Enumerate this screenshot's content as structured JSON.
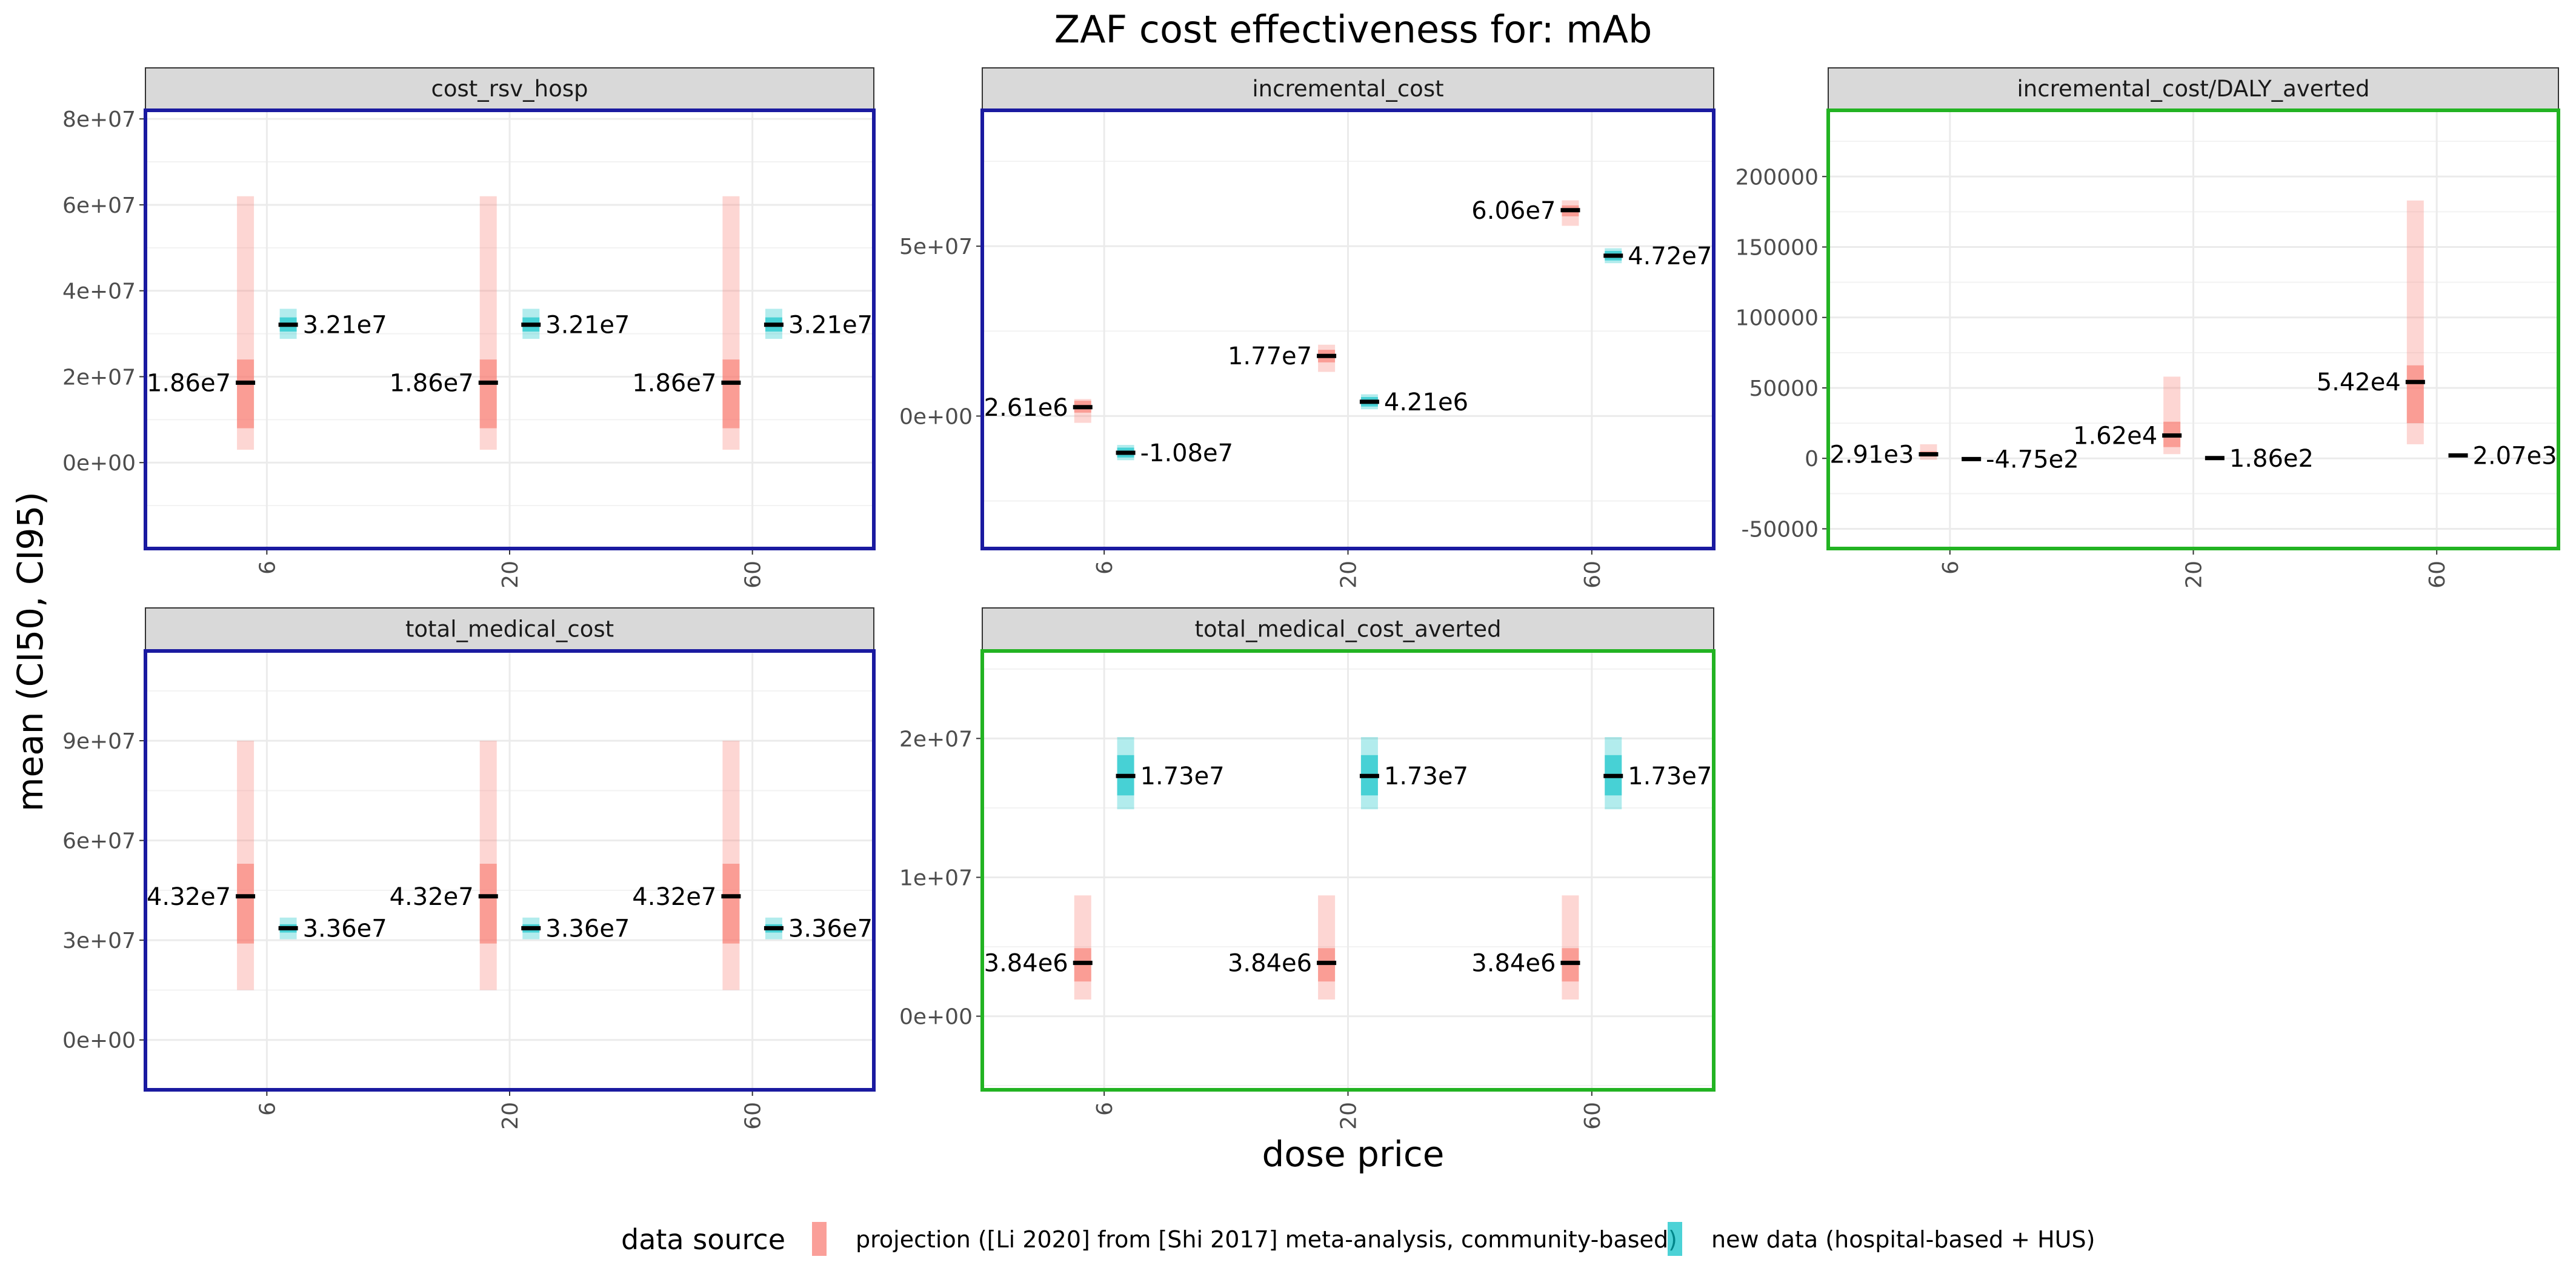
{
  "chart_data": {
    "type": "errorbar-facets",
    "title": "ZAF cost effectiveness for: mAb",
    "xlabel": "dose price",
    "ylabel": "mean (CI50, CI95)",
    "categories": [
      "6",
      "20",
      "60"
    ],
    "legend": {
      "title": "data source",
      "placement": "bottom",
      "entries": [
        {
          "name": "projection ([Li 2020] from [Shi 2017] meta-analysis, community-based)",
          "color": "#F8766D"
        },
        {
          "name": "new data (hospital-based + HUS)",
          "color": "#00BFC4"
        }
      ]
    },
    "facets": [
      {
        "name": "cost_rsv_hosp",
        "border": "#1a1aa0",
        "ylim": [
          -20000000,
          82000000
        ],
        "ticks": [
          0,
          20000000,
          40000000,
          60000000,
          80000000
        ],
        "tick_labels": [
          "0e+00",
          "2e+07",
          "4e+07",
          "6e+07",
          "8e+07"
        ],
        "series": [
          {
            "name": "projection ([Li 2020] from [Shi 2017] meta-analysis, community-based)",
            "points": [
              {
                "x": "6",
                "mean": 18600000,
                "ci50": [
                  8000000,
                  24000000
                ],
                "ci95": [
                  3000000,
                  62000000
                ],
                "label": "1.86e7"
              },
              {
                "x": "20",
                "mean": 18600000,
                "ci50": [
                  8000000,
                  24000000
                ],
                "ci95": [
                  3000000,
                  62000000
                ],
                "label": "1.86e7"
              },
              {
                "x": "60",
                "mean": 18600000,
                "ci50": [
                  8000000,
                  24000000
                ],
                "ci95": [
                  3000000,
                  62000000
                ],
                "label": "1.86e7"
              }
            ]
          },
          {
            "name": "new data (hospital-based + HUS)",
            "points": [
              {
                "x": "6",
                "mean": 32100000,
                "ci50": [
                  30500000,
                  33800000
                ],
                "ci95": [
                  28800000,
                  35800000
                ],
                "label": "3.21e7"
              },
              {
                "x": "20",
                "mean": 32100000,
                "ci50": [
                  30500000,
                  33800000
                ],
                "ci95": [
                  28800000,
                  35800000
                ],
                "label": "3.21e7"
              },
              {
                "x": "60",
                "mean": 32100000,
                "ci50": [
                  30500000,
                  33800000
                ],
                "ci95": [
                  28800000,
                  35800000
                ],
                "label": "3.21e7"
              }
            ]
          }
        ]
      },
      {
        "name": "incremental_cost",
        "border": "#1a1aa0",
        "ylim": [
          -39000000,
          90000000
        ],
        "ticks": [
          0,
          50000000
        ],
        "tick_labels": [
          "0e+00",
          "5e+07"
        ],
        "series": [
          {
            "name": "projection ([Li 2020] from [Shi 2017] meta-analysis, community-based)",
            "points": [
              {
                "x": "6",
                "mean": 2610000,
                "ci50": [
                  1000000,
                  4500000
                ],
                "ci95": [
                  -2000000,
                  5000000
                ],
                "label": "2.61e6"
              },
              {
                "x": "20",
                "mean": 17700000,
                "ci50": [
                  15800000,
                  19500000
                ],
                "ci95": [
                  13000000,
                  21000000
                ],
                "label": "1.77e7"
              },
              {
                "x": "60",
                "mean": 60600000,
                "ci50": [
                  58800000,
                  62000000
                ],
                "ci95": [
                  56000000,
                  63500000
                ],
                "label": "6.06e7"
              }
            ]
          },
          {
            "name": "new data (hospital-based + HUS)",
            "points": [
              {
                "x": "6",
                "mean": -10800000,
                "ci50": [
                  -12200000,
                  -9300000
                ],
                "ci95": [
                  -13000000,
                  -8500000
                ],
                "label": "-1.08e7"
              },
              {
                "x": "20",
                "mean": 4210000,
                "ci50": [
                  2800000,
                  5600000
                ],
                "ci95": [
                  2000000,
                  6400000
                ],
                "label": "4.21e6"
              },
              {
                "x": "60",
                "mean": 47200000,
                "ci50": [
                  45800000,
                  48600000
                ],
                "ci95": [
                  45000000,
                  49400000
                ],
                "label": "4.72e7"
              }
            ]
          }
        ]
      },
      {
        "name": "incremental_cost/DALY_averted",
        "border": "#22b322",
        "ylim": [
          -64000,
          247000
        ],
        "ticks": [
          -50000,
          0,
          50000,
          100000,
          150000,
          200000
        ],
        "tick_labels": [
          "-50000",
          "0",
          "50000",
          "100000",
          "150000",
          "200000"
        ],
        "series": [
          {
            "name": "projection ([Li 2020] from [Shi 2017] meta-analysis, community-based)",
            "points": [
              {
                "x": "6",
                "mean": 2910,
                "ci50": [
                  1200,
                  5000
                ],
                "ci95": [
                  -1000,
                  10000
                ],
                "label": "2.91e3"
              },
              {
                "x": "20",
                "mean": 16200,
                "ci50": [
                  8000,
                  26000
                ],
                "ci95": [
                  3000,
                  58000
                ],
                "label": "1.62e4"
              },
              {
                "x": "60",
                "mean": 54200,
                "ci50": [
                  25000,
                  66000
                ],
                "ci95": [
                  10000,
                  183000
                ],
                "label": "5.42e4"
              }
            ]
          },
          {
            "name": "new data (hospital-based + HUS)",
            "points": [
              {
                "x": "6",
                "mean": -475,
                "ci50": [
                  -700,
                  -250
                ],
                "ci95": [
                  -900,
                  -100
                ],
                "label": "-4.75e2"
              },
              {
                "x": "20",
                "mean": 186,
                "ci50": [
                  50,
                  320
                ],
                "ci95": [
                  -50,
                  420
                ],
                "label": "1.86e2"
              },
              {
                "x": "60",
                "mean": 2070,
                "ci50": [
                  1700,
                  2400
                ],
                "ci95": [
                  1400,
                  2700
                ],
                "label": "2.07e3"
              }
            ]
          }
        ]
      },
      {
        "name": "total_medical_cost",
        "border": "#1a1aa0",
        "ylim": [
          -15000000,
          117000000
        ],
        "ticks": [
          0,
          30000000,
          60000000,
          90000000
        ],
        "tick_labels": [
          "0e+00",
          "3e+07",
          "6e+07",
          "9e+07"
        ],
        "series": [
          {
            "name": "projection ([Li 2020] from [Shi 2017] meta-analysis, community-based)",
            "points": [
              {
                "x": "6",
                "mean": 43200000,
                "ci50": [
                  29000000,
                  53000000
                ],
                "ci95": [
                  15000000,
                  90000000
                ],
                "label": "4.32e7"
              },
              {
                "x": "20",
                "mean": 43200000,
                "ci50": [
                  29000000,
                  53000000
                ],
                "ci95": [
                  15000000,
                  90000000
                ],
                "label": "4.32e7"
              },
              {
                "x": "60",
                "mean": 43200000,
                "ci50": [
                  29000000,
                  53000000
                ],
                "ci95": [
                  15000000,
                  90000000
                ],
                "label": "4.32e7"
              }
            ]
          },
          {
            "name": "new data (hospital-based + HUS)",
            "points": [
              {
                "x": "6",
                "mean": 33600000,
                "ci50": [
                  32300000,
                  34800000
                ],
                "ci95": [
                  30300000,
                  36800000
                ],
                "label": "3.36e7"
              },
              {
                "x": "20",
                "mean": 33600000,
                "ci50": [
                  32300000,
                  34800000
                ],
                "ci95": [
                  30300000,
                  36800000
                ],
                "label": "3.36e7"
              },
              {
                "x": "60",
                "mean": 33600000,
                "ci50": [
                  32300000,
                  34800000
                ],
                "ci95": [
                  30300000,
                  36800000
                ],
                "label": "3.36e7"
              }
            ]
          }
        ]
      },
      {
        "name": "total_medical_cost_averted",
        "border": "#22b322",
        "ylim": [
          -5300000,
          26300000
        ],
        "ticks": [
          0,
          10000000,
          20000000
        ],
        "tick_labels": [
          "0e+00",
          "1e+07",
          "2e+07"
        ],
        "series": [
          {
            "name": "projection ([Li 2020] from [Shi 2017] meta-analysis, community-based)",
            "points": [
              {
                "x": "6",
                "mean": 3840000,
                "ci50": [
                  2500000,
                  4900000
                ],
                "ci95": [
                  1200000,
                  8700000
                ],
                "label": "3.84e6"
              },
              {
                "x": "20",
                "mean": 3840000,
                "ci50": [
                  2500000,
                  4900000
                ],
                "ci95": [
                  1200000,
                  8700000
                ],
                "label": "3.84e6"
              },
              {
                "x": "60",
                "mean": 3840000,
                "ci50": [
                  2500000,
                  4900000
                ],
                "ci95": [
                  1200000,
                  8700000
                ],
                "label": "3.84e6"
              }
            ]
          },
          {
            "name": "new data (hospital-based + HUS)",
            "points": [
              {
                "x": "6",
                "mean": 17300000,
                "ci50": [
                  15900000,
                  18800000
                ],
                "ci95": [
                  14900000,
                  20100000
                ],
                "label": "1.73e7"
              },
              {
                "x": "20",
                "mean": 17300000,
                "ci50": [
                  15900000,
                  18800000
                ],
                "ci95": [
                  14900000,
                  20100000
                ],
                "label": "1.73e7"
              },
              {
                "x": "60",
                "mean": 17300000,
                "ci50": [
                  15900000,
                  18800000
                ],
                "ci95": [
                  14900000,
                  20100000
                ],
                "label": "1.73e7"
              }
            ]
          }
        ]
      }
    ]
  }
}
